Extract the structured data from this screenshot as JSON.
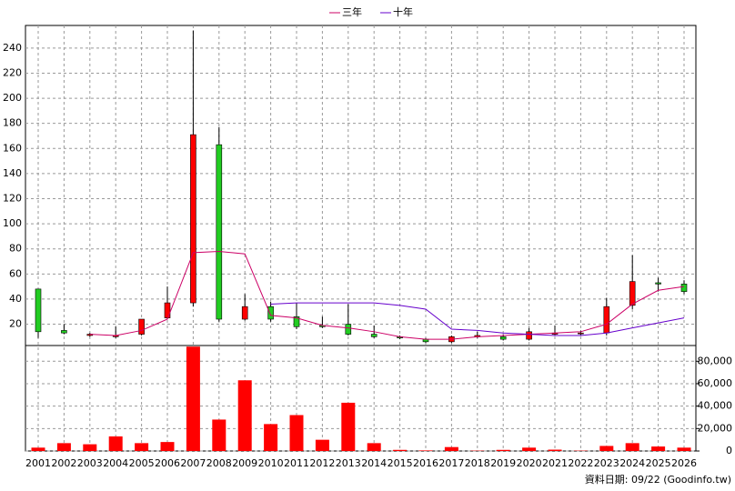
{
  "chart_data": [
    {
      "type": "candlestick",
      "categories": [
        "2001",
        "2002",
        "2003",
        "2004",
        "2005",
        "2006",
        "2007",
        "2008",
        "2009",
        "2010",
        "2011",
        "2012",
        "2013",
        "2014",
        "2015",
        "2016",
        "2017",
        "2018",
        "2019",
        "2020",
        "2021",
        "2022",
        "2023",
        "2024",
        "2025",
        "2026"
      ],
      "open": [
        48,
        15,
        11,
        10,
        12,
        25,
        37,
        163,
        24,
        34,
        26,
        19,
        20,
        12,
        10,
        8,
        6,
        10,
        10,
        8,
        12,
        13,
        13,
        35,
        53,
        52
      ],
      "high": [
        48,
        20,
        13,
        18,
        24,
        50,
        254,
        177,
        44,
        38,
        37,
        26,
        36,
        19,
        11,
        9,
        11,
        14,
        12,
        17,
        19,
        15,
        41,
        75,
        57,
        55
      ],
      "low": [
        9,
        12,
        10,
        9,
        11,
        24,
        34,
        22,
        23,
        22,
        16,
        17,
        11,
        9,
        8,
        5,
        5,
        9,
        7,
        7,
        11,
        11,
        11,
        32,
        46,
        44
      ],
      "close": [
        14,
        13,
        12,
        11,
        24,
        37,
        171,
        24,
        34,
        24,
        18,
        18,
        12,
        10,
        9,
        6,
        10,
        11,
        8,
        14,
        13,
        13,
        34,
        54,
        52,
        46
      ],
      "up_color": "#ff0000",
      "down_color": "#22cc22",
      "series": [
        {
          "name": "三年",
          "color": "#cc0066",
          "values": [
            null,
            null,
            12,
            11,
            15,
            24,
            77,
            78,
            76,
            27,
            25,
            19,
            17,
            14,
            10,
            8,
            8,
            10,
            11,
            12,
            13,
            14,
            20,
            36,
            47,
            50
          ]
        },
        {
          "name": "十年",
          "color": "#6600cc",
          "values": [
            null,
            null,
            null,
            null,
            null,
            null,
            null,
            null,
            null,
            36,
            37,
            37,
            37,
            37,
            35,
            32,
            16,
            15,
            13,
            12,
            11,
            11,
            13,
            17,
            21,
            25
          ]
        }
      ],
      "ylim": [
        3,
        258
      ],
      "yticks": [
        20,
        40,
        60,
        80,
        100,
        120,
        140,
        160,
        180,
        200,
        220,
        240
      ],
      "grid": true,
      "legend": "top"
    },
    {
      "type": "bar",
      "values": [
        3000,
        7000,
        6000,
        13000,
        7000,
        8000,
        93000,
        28000,
        63000,
        24000,
        32000,
        10000,
        43000,
        7000,
        1000,
        500,
        3500,
        300,
        1000,
        3000,
        1200,
        300,
        4500,
        7000,
        4000,
        3000
      ],
      "color": "#ff0000",
      "ylim": [
        0,
        94000
      ],
      "yticks": [
        0,
        {
          "value": 20000,
          "label": "20,000"
        },
        {
          "value": 40000,
          "label": "40,000"
        },
        {
          "value": 60000,
          "label": "60,000"
        },
        {
          "value": 80000,
          "label": "80,000"
        }
      ]
    }
  ],
  "footer": "資料日期: 09/22 (Goodinfo.tw)"
}
